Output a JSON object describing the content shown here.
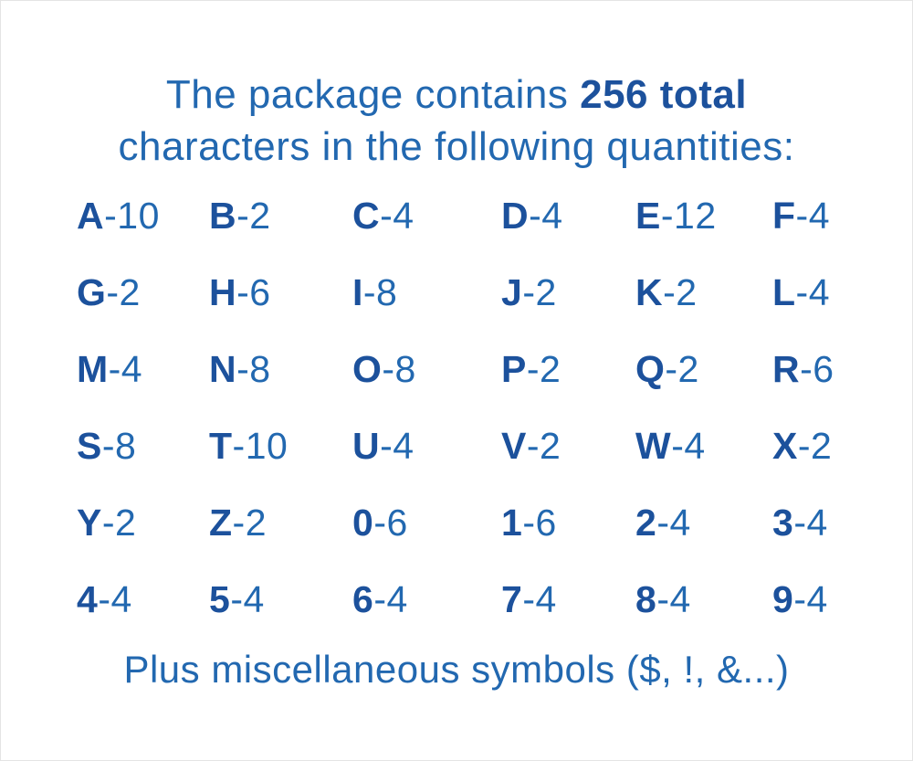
{
  "header": {
    "line1_prefix": "The package contains ",
    "line1_bold": "256 total",
    "line2": "characters in the following quantities:"
  },
  "grid": {
    "separator": "-",
    "cells": [
      {
        "char": "A",
        "qty": "10"
      },
      {
        "char": "B",
        "qty": "2"
      },
      {
        "char": "C",
        "qty": "4"
      },
      {
        "char": "D",
        "qty": "4"
      },
      {
        "char": "E",
        "qty": "12"
      },
      {
        "char": "F",
        "qty": "4"
      },
      {
        "char": "G",
        "qty": "2"
      },
      {
        "char": "H",
        "qty": "6"
      },
      {
        "char": "I",
        "qty": "8"
      },
      {
        "char": "J",
        "qty": "2"
      },
      {
        "char": "K",
        "qty": "2"
      },
      {
        "char": "L",
        "qty": "4"
      },
      {
        "char": "M",
        "qty": "4"
      },
      {
        "char": "N",
        "qty": "8"
      },
      {
        "char": "O",
        "qty": "8"
      },
      {
        "char": "P",
        "qty": "2"
      },
      {
        "char": "Q",
        "qty": "2"
      },
      {
        "char": "R",
        "qty": "6"
      },
      {
        "char": "S",
        "qty": "8"
      },
      {
        "char": "T",
        "qty": "10"
      },
      {
        "char": "U",
        "qty": "4"
      },
      {
        "char": "V",
        "qty": "2"
      },
      {
        "char": "W",
        "qty": "4"
      },
      {
        "char": "X",
        "qty": "2"
      },
      {
        "char": "Y",
        "qty": "2"
      },
      {
        "char": "Z",
        "qty": "2"
      },
      {
        "char": "0",
        "qty": "6"
      },
      {
        "char": "1",
        "qty": "6"
      },
      {
        "char": "2",
        "qty": "4"
      },
      {
        "char": "3",
        "qty": "4"
      },
      {
        "char": "4",
        "qty": "4"
      },
      {
        "char": "5",
        "qty": "4"
      },
      {
        "char": "6",
        "qty": "4"
      },
      {
        "char": "7",
        "qty": "4"
      },
      {
        "char": "8",
        "qty": "4"
      },
      {
        "char": "9",
        "qty": "4"
      }
    ]
  },
  "footer": {
    "text": "Plus miscellaneous symbols ($, !, &...)"
  },
  "colors": {
    "text_blue": "#2268b0",
    "bold_blue": "#1c519c",
    "background": "#ffffff"
  }
}
